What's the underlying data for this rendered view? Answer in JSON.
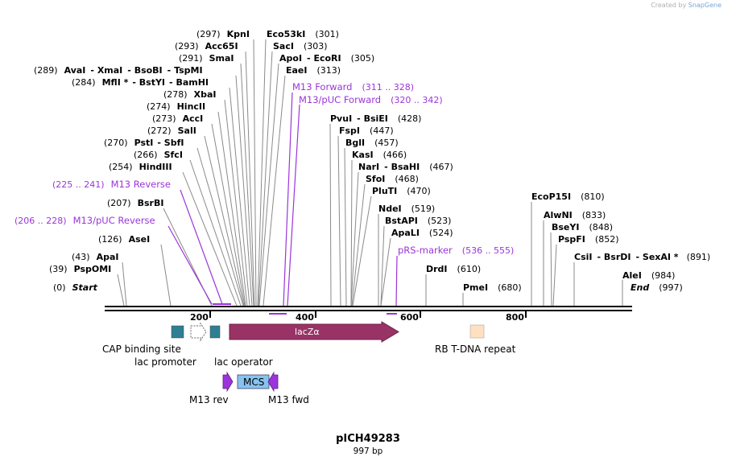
{
  "credit": {
    "prefix": "Created by",
    "brand": "SnapGene"
  },
  "plasmid": {
    "name": "pICH49283",
    "length_label": "997 bp"
  },
  "enzymes": {
    "KpnI": {
      "name": "KpnI",
      "pos": "(297)"
    },
    "Acc65I": {
      "name": "Acc65I",
      "pos": "(293)"
    },
    "SmaI": {
      "name": "SmaI",
      "pos": "(291)"
    },
    "AvaI": {
      "name": "AvaI",
      "pos": "(289)"
    },
    "XmaI": {
      "name": "XmaI"
    },
    "BsoBI": {
      "name": "BsoBI"
    },
    "TspMI": {
      "name": "TspMI"
    },
    "MflI": {
      "name": "MflI *",
      "pos": "(284)"
    },
    "BstYI": {
      "name": "BstYI"
    },
    "BamHI": {
      "name": "BamHI"
    },
    "XbaI": {
      "name": "XbaI",
      "pos": "(278)"
    },
    "HincII": {
      "name": "HincII",
      "pos": "(274)"
    },
    "AccI": {
      "name": "AccI",
      "pos": "(273)"
    },
    "SalI": {
      "name": "SalI",
      "pos": "(272)"
    },
    "PstI": {
      "name": "PstI",
      "pos": "(270)"
    },
    "SbfI": {
      "name": "SbfI"
    },
    "SfcI": {
      "name": "SfcI",
      "pos": "(266)"
    },
    "HindIII": {
      "name": "HindIII",
      "pos": "(254)"
    },
    "BsrBI": {
      "name": "BsrBI",
      "pos": "(207)"
    },
    "AseI": {
      "name": "AseI",
      "pos": "(126)"
    },
    "ApaI": {
      "name": "ApaI",
      "pos": "(43)"
    },
    "PspOMI": {
      "name": "PspOMI",
      "pos": "(39)"
    },
    "Eco53kI": {
      "name": "Eco53kI",
      "pos": "(301)"
    },
    "SacI": {
      "name": "SacI",
      "pos": "(303)"
    },
    "ApoI": {
      "name": "ApoI",
      "pos": "(305)"
    },
    "EcoRI": {
      "name": "EcoRI"
    },
    "EaeI": {
      "name": "EaeI",
      "pos": "(313)"
    },
    "PvuI": {
      "name": "PvuI",
      "pos": "(428)"
    },
    "BsiEI": {
      "name": "BsiEI"
    },
    "FspI": {
      "name": "FspI",
      "pos": "(447)"
    },
    "BglI": {
      "name": "BglI",
      "pos": "(457)"
    },
    "KasI": {
      "name": "KasI",
      "pos": "(466)"
    },
    "NarI": {
      "name": "NarI",
      "pos": "(467)"
    },
    "BsaHI": {
      "name": "BsaHI"
    },
    "SfoI": {
      "name": "SfoI",
      "pos": "(468)"
    },
    "PluTI": {
      "name": "PluTI",
      "pos": "(470)"
    },
    "NdeI": {
      "name": "NdeI",
      "pos": "(519)"
    },
    "BstAPI": {
      "name": "BstAPI",
      "pos": "(523)"
    },
    "ApaLI": {
      "name": "ApaLI",
      "pos": "(524)"
    },
    "DrdI": {
      "name": "DrdI",
      "pos": "(610)"
    },
    "PmeI": {
      "name": "PmeI",
      "pos": "(680)"
    },
    "EcoP15I": {
      "name": "EcoP15I",
      "pos": "(810)"
    },
    "AlwNI": {
      "name": "AlwNI",
      "pos": "(833)"
    },
    "BseYI": {
      "name": "BseYI",
      "pos": "(848)"
    },
    "PspFI": {
      "name": "PspFI",
      "pos": "(852)"
    },
    "CsiI": {
      "name": "CsiI",
      "pos": "(891)"
    },
    "BsrDI": {
      "name": "BsrDI"
    },
    "SexAI": {
      "name": "SexAI *"
    },
    "AleI": {
      "name": "AleI",
      "pos": "(984)"
    }
  },
  "ends": {
    "start": {
      "label": "Start",
      "pos": "(0)"
    },
    "end": {
      "label": "End",
      "pos": "(997)"
    }
  },
  "primers": {
    "m13_forward": {
      "name": "M13 Forward",
      "range": "(311 .. 328)"
    },
    "m13_puc_forward": {
      "name": "M13/pUC Forward",
      "range": "(320 .. 342)"
    },
    "m13_reverse": {
      "name": "M13 Reverse",
      "range": "(225 .. 241)"
    },
    "m13_puc_reverse": {
      "name": "M13/pUC Reverse",
      "range": "(206 .. 228)"
    },
    "prs_marker": {
      "name": "pRS-marker",
      "range": "(536 .. 555)"
    }
  },
  "ruler": {
    "ticks": [
      "200",
      "400",
      "600",
      "800"
    ]
  },
  "features": {
    "cap": {
      "label": "CAP binding site",
      "color": "#2e7f93"
    },
    "lac_promoter": {
      "label": "lac promoter",
      "color": "#ffffff"
    },
    "lac_operator": {
      "label": "lac operator",
      "color": "#2e7f93"
    },
    "lacz": {
      "label": "lacZα",
      "color": "#993366"
    },
    "rb_tdna": {
      "label": "RB T-DNA repeat",
      "color": "#ffe0c0"
    },
    "m13_rev": {
      "label": "M13 rev",
      "color": "#9b35d9"
    },
    "mcs": {
      "label": "MCS",
      "color": "#87c3f0"
    },
    "m13_fwd": {
      "label": "M13 fwd",
      "color": "#9b35d9"
    }
  },
  "colors": {
    "primer": "#9b35d9",
    "backbone": "#000000",
    "leader": "#8a8a8a"
  }
}
